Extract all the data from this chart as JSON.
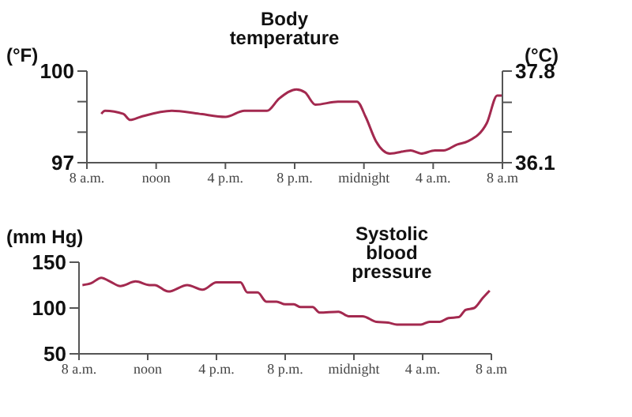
{
  "chart_data": [
    {
      "type": "line",
      "title": "Body temperature",
      "ylabel": "(°F)",
      "y2label": "(°C)",
      "marker": "none",
      "x": [
        "--01-01T08:50",
        "--01-01T09:03",
        "--01-01T10:06",
        "--01-01T10:30",
        "--01-01T11:06",
        "--01-01T12:54",
        "--01-01T14:30",
        "--01-01T16:00",
        "--01-01T17:06",
        "--01-01T18:24",
        "--01-01T19:06",
        "--01-01T20:06",
        "--01-01T20:36",
        "--01-01T21:12",
        "--01-01T22:30",
        "--01-01T23:36",
        "--01-02T00:06",
        "--01-02T00:42",
        "--01-02T01:30",
        "--01-02T02:42",
        "--01-02T03:18",
        "--01-02T04:06",
        "--01-02T04:36",
        "--01-02T05:24",
        "--01-02T06:00",
        "--01-02T07:06",
        "--01-02T07:42",
        "--01-02T08:00"
      ],
      "series": [
        {
          "color": "#a3294f",
          "values": [
            98.6,
            98.7,
            98.6,
            98.4,
            98.5,
            98.7,
            98.6,
            98.5,
            98.7,
            98.7,
            99.1,
            99.4,
            99.3,
            98.9,
            99.0,
            99.0,
            98.5,
            97.7,
            97.3,
            97.4,
            97.3,
            97.4,
            97.4,
            97.6,
            97.7,
            98.3,
            99.2,
            99.2
          ]
        }
      ],
      "xlim": [
        "--01-01T08:00",
        "--01-02T08:00"
      ],
      "xticks": [
        {
          "value": "--01-01T08:00",
          "label": "8 a.m."
        },
        {
          "value": "--01-01T12:00",
          "label": "noon"
        },
        {
          "value": "--01-01T16:00",
          "label": "4 p.m."
        },
        {
          "value": "--01-01T20:00",
          "label": "8 p.m."
        },
        {
          "value": "--01-02T00:00",
          "label": "midnight"
        },
        {
          "value": "--01-02T04:00",
          "label": "4 a.m."
        },
        {
          "value": "--01-02T08:00",
          "label": "8 a.m"
        }
      ],
      "ylim": [
        97,
        100
      ],
      "yticks": [
        97,
        {
          "value": 98,
          "label": null
        },
        {
          "value": 99,
          "label": null
        },
        100
      ],
      "y2lim": [
        36.1,
        37.8
      ],
      "y2ticks": [
        36.1,
        {
          "value": 36.67,
          "label": null
        },
        {
          "value": 37.22,
          "label": null
        },
        37.8
      ]
    },
    {
      "type": "line",
      "title": "Systolic blood pressure",
      "ylabel": "(mm Hg)",
      "marker": "none",
      "x": [
        "--01-01T08:12",
        "--01-01T08:42",
        "--01-01T09:18",
        "--01-01T09:48",
        "--01-01T10:24",
        "--01-01T11:18",
        "--01-01T12:06",
        "--01-01T12:24",
        "--01-01T13:12",
        "--01-01T14:18",
        "--01-01T15:12",
        "--01-01T16:00",
        "--01-01T17:24",
        "--01-01T17:48",
        "--01-01T18:24",
        "--01-01T18:54",
        "--01-01T19:30",
        "--01-01T20:00",
        "--01-01T20:30",
        "--01-01T20:54",
        "--01-01T21:36",
        "--01-01T22:00",
        "--01-01T23:06",
        "--01-01T23:42",
        "--01-02T00:30",
        "--01-02T01:18",
        "--01-02T02:00",
        "--01-02T02:30",
        "--01-02T03:54",
        "--01-02T04:24",
        "--01-02T05:00",
        "--01-02T05:30",
        "--01-02T06:06",
        "--01-02T06:30",
        "--01-02T07:00",
        "--01-02T07:30",
        "--01-02T07:54"
      ],
      "series": [
        {
          "color": "#a3294f",
          "values": [
            125,
            127,
            133,
            129,
            124,
            129,
            125,
            125,
            118,
            125,
            120,
            128,
            128,
            117,
            117,
            107,
            107,
            104,
            104,
            101,
            101,
            95,
            96,
            91,
            91,
            85,
            84,
            82,
            82,
            85,
            85,
            89,
            90,
            98,
            100,
            111,
            119
          ]
        }
      ],
      "xlim": [
        "--01-01T08:00",
        "--01-02T08:00"
      ],
      "xticks": [
        {
          "value": "--01-01T08:00",
          "label": "8 a.m."
        },
        {
          "value": "--01-01T12:00",
          "label": "noon"
        },
        {
          "value": "--01-01T16:00",
          "label": "4 p.m."
        },
        {
          "value": "--01-01T20:00",
          "label": "8 p.m."
        },
        {
          "value": "--01-02T00:00",
          "label": "midnight"
        },
        {
          "value": "--01-02T04:00",
          "label": "4 a.m."
        },
        {
          "value": "--01-02T08:00",
          "label": "8 a.m"
        }
      ],
      "ylim": [
        50,
        150
      ],
      "yticks": [
        50,
        100,
        150
      ]
    }
  ]
}
